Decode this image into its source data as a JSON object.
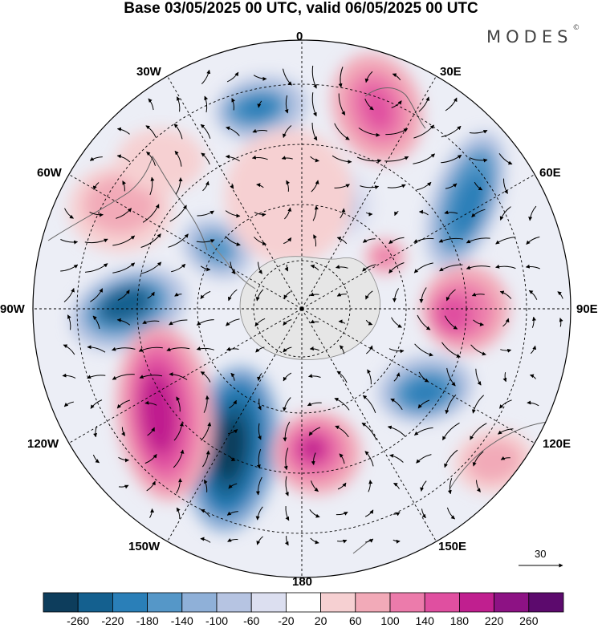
{
  "title": "Base 03/05/2025 00 UTC, valid 06/05/2025 00 UTC",
  "brand": {
    "name": "MODES",
    "mark": "©"
  },
  "map": {
    "projection": "south-polar-stereographic",
    "meridian_labels": [
      "0",
      "30E",
      "60E",
      "90E",
      "120E",
      "150E",
      "180",
      "150W",
      "120W",
      "90W",
      "60W",
      "30W"
    ],
    "reference_vector": {
      "label": "30",
      "icon": "arrow-right-icon"
    }
  },
  "colorbar": {
    "ticks": [
      "-260",
      "-220",
      "-180",
      "-140",
      "-100",
      "-60",
      "-20",
      "20",
      "60",
      "100",
      "140",
      "180",
      "220",
      "260"
    ],
    "colors": [
      "#0d3d5c",
      "#14608f",
      "#2a7fb8",
      "#5597c8",
      "#8fb0d8",
      "#b6c4e2",
      "#dcdff0",
      "#ffffff",
      "#f6d0d2",
      "#f2aab8",
      "#ec7bab",
      "#e04fa0",
      "#c01f8f",
      "#8d1284",
      "#5c0a6d"
    ]
  }
}
